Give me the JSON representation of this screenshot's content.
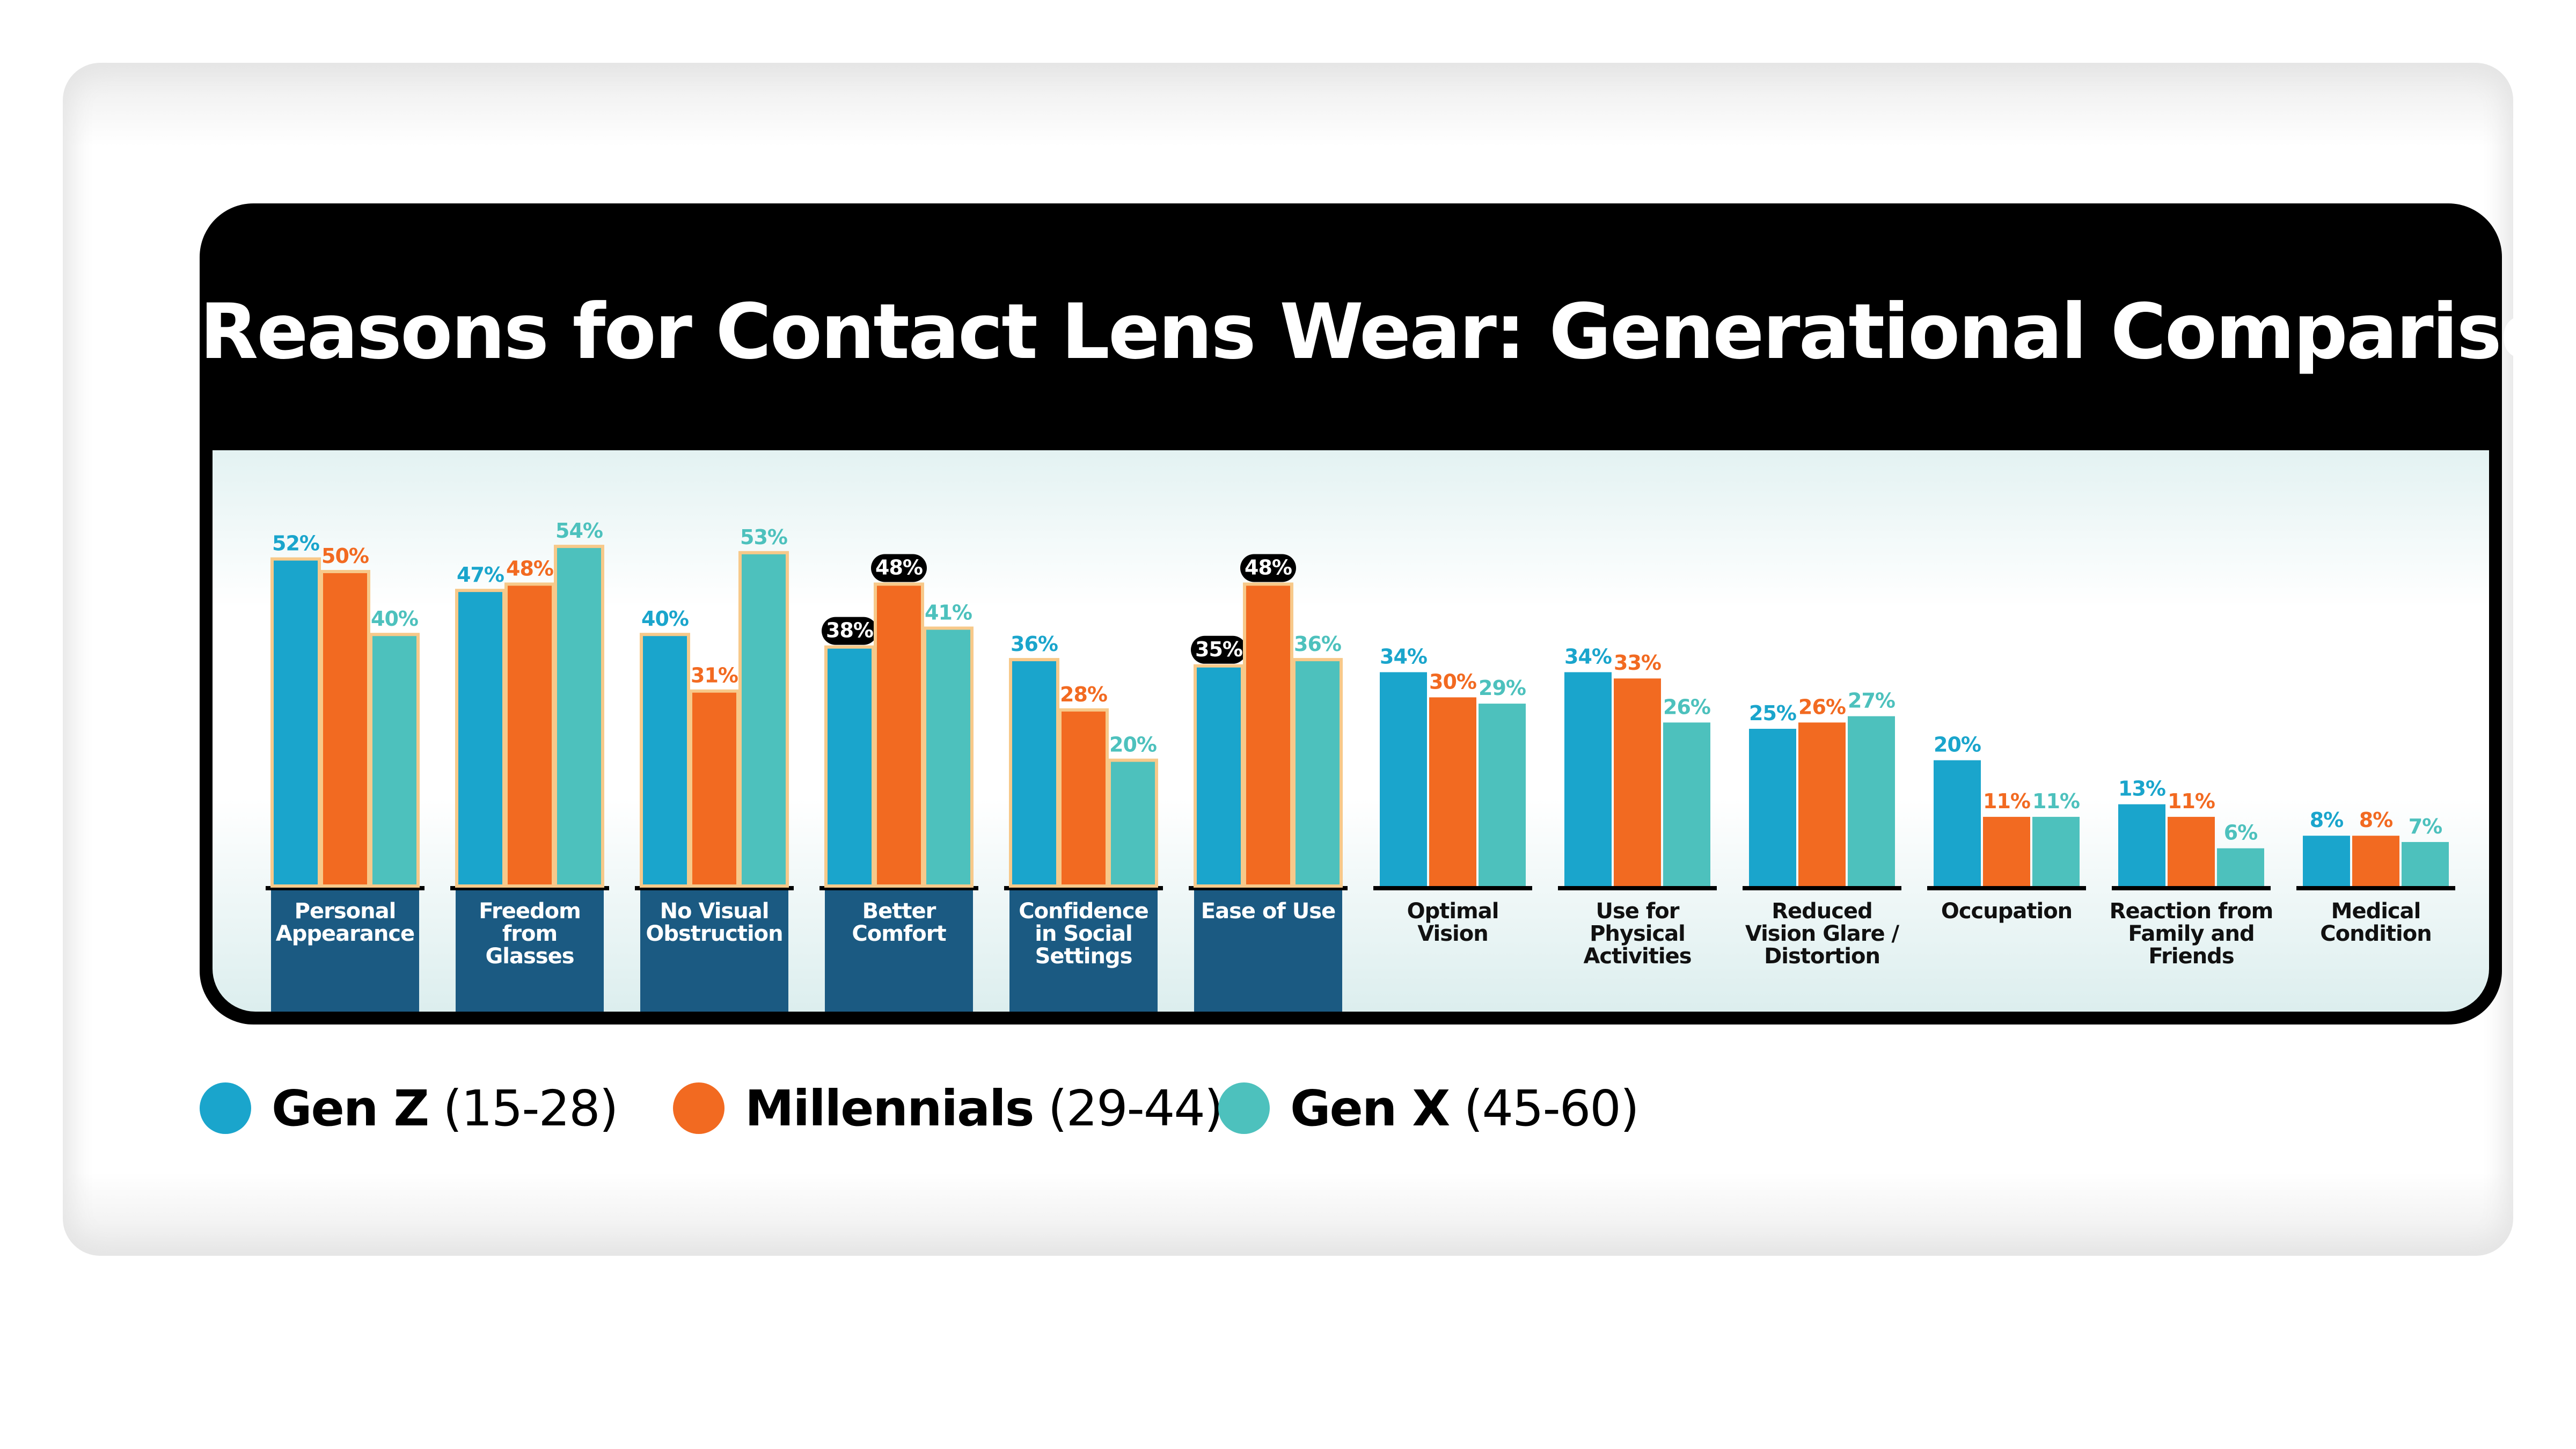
{
  "chart_data": {
    "type": "bar",
    "title": "Reasons for Contact Lens Wear: Generational Comparisons",
    "xlabel": "",
    "ylabel": "",
    "ylim": [
      0,
      60
    ],
    "value_suffix": "%",
    "categories": [
      "Personal Appearance",
      "Freedom from Glasses",
      "No Visual Obstruction",
      "Better Comfort",
      "Confidence in Social Settings",
      "Ease of Use",
      "Optimal Vision",
      "Use for Physical Activities",
      "Reduced Vision Glare / Distortion",
      "Occupation",
      "Reaction from Family and Friends",
      "Medical Condition"
    ],
    "category_label_lines": [
      [
        "Personal",
        "Appearance"
      ],
      [
        "Freedom",
        "from",
        "Glasses"
      ],
      [
        "No Visual",
        "Obstruction"
      ],
      [
        "Better",
        "Comfort"
      ],
      [
        "Confidence",
        "in Social",
        "Settings"
      ],
      [
        "Ease of Use"
      ],
      [
        "Optimal",
        "Vision"
      ],
      [
        "Use for",
        "Physical",
        "Activities"
      ],
      [
        "Reduced",
        "Vision Glare /",
        "Distortion"
      ],
      [
        "Occupation"
      ],
      [
        "Reaction from",
        "Family and",
        "Friends"
      ],
      [
        "Medical",
        "Condition"
      ]
    ],
    "highlighted_categories": [
      "Personal Appearance",
      "Freedom from Glasses",
      "No Visual Obstruction",
      "Better Comfort",
      "Confidence in Social Settings",
      "Ease of Use"
    ],
    "series": [
      {
        "name": "Gen Z",
        "age_range": "(15-28)",
        "color": "#1aa5cc",
        "values": [
          52,
          47,
          40,
          38,
          36,
          35,
          34,
          34,
          25,
          20,
          13,
          8
        ]
      },
      {
        "name": "Millennials",
        "age_range": "(29-44)",
        "color": "#f26a21",
        "values": [
          50,
          48,
          31,
          48,
          28,
          48,
          30,
          33,
          26,
          11,
          11,
          8
        ]
      },
      {
        "name": "Gen X",
        "age_range": "(45-60)",
        "color": "#4dc1bd",
        "values": [
          40,
          54,
          53,
          41,
          20,
          36,
          29,
          26,
          27,
          11,
          6,
          7
        ]
      }
    ],
    "emphasized_labels": [
      {
        "category": "Better Comfort",
        "series": "Gen Z"
      },
      {
        "category": "Better Comfort",
        "series": "Millennials"
      },
      {
        "category": "Ease of Use",
        "series": "Gen Z"
      },
      {
        "category": "Ease of Use",
        "series": "Millennials"
      }
    ],
    "legend_position": "bottom-left",
    "grid": false
  },
  "colors": {
    "label_text": "#111111",
    "label_text_highlighted": "#ffffff",
    "label_bg_highlighted": "#1b5a82",
    "bar_outline_highlighted": "#f7c98a",
    "emphasis_badge": "#000000"
  }
}
